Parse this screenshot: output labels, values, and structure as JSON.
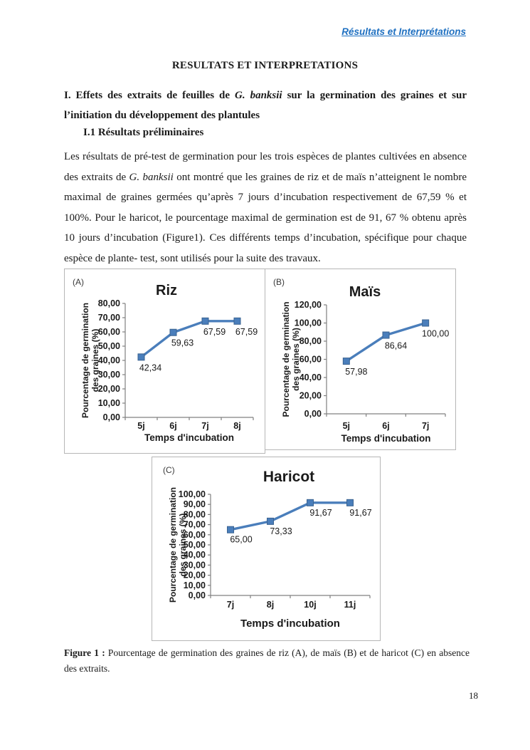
{
  "page": {
    "header": "Résultats et Interprétations",
    "title": "RESULTATS ET INTERPRETATIONS",
    "page_number": "18"
  },
  "section": {
    "heading_prefix": "I. Effets des extraits de feuilles de ",
    "heading_species": "G. banksii",
    "heading_suffix": " sur la germination des graines et sur l’initiation du développement des plantules",
    "subheading": "I.1 Résultats préliminaires"
  },
  "paragraph": {
    "part1": "Les résultats de pré-test de germination pour les trois espèces de plantes cultivées en absence des extraits de ",
    "species": "G. banksii",
    "part2": " ont montré que les graines de riz et de maïs n’atteignent le nombre maximal de graines germées qu’après 7 jours d’incubation respectivement de 67,59 % et 100%.  Pour le haricot, le pourcentage maximal de germination est de 91, 67 % obtenu après 10 jours d’incubation (Figure1). Ces différents temps d’incubation, spécifique pour chaque espèce de plante- test, sont utilisés pour la suite des travaux."
  },
  "caption": {
    "label": "Figure 1 :",
    "text": " Pourcentage de germination des graines de riz (A), de maïs (B) et de haricot (C) en absence des extraits."
  },
  "colors": {
    "header_blue": "#1f70c1",
    "line_blue": "#4a7ebb",
    "marker_edge": "#3a6391",
    "axis_gray": "#808080",
    "box_border": "#b6b6b6"
  },
  "chart_data": [
    {
      "type": "line",
      "panel": "(A)",
      "title": "Riz",
      "categories": [
        "5j",
        "6j",
        "7j",
        "8j"
      ],
      "values": [
        42.34,
        59.63,
        67.59,
        67.59
      ],
      "value_labels": [
        "42,34",
        "59,63",
        "67,59",
        "67,59"
      ],
      "ytick_labels": [
        "0,00",
        "10,00",
        "20,00",
        "30,00",
        "40,00",
        "50,00",
        "60,00",
        "70,00",
        "80,00"
      ],
      "ylim": [
        0,
        80
      ],
      "ystep": 10,
      "ylabel": "Pourcentage de germination des graines (%)",
      "ylabel_lines": [
        "Pourcentage de germination",
        "des graines (%)"
      ],
      "xlabel": "Temps d'incubation",
      "grid": false,
      "legend": "none",
      "line_color": "#4a7ebb"
    },
    {
      "type": "line",
      "panel": "(B)",
      "title": "Maïs",
      "categories": [
        "5j",
        "6j",
        "7j"
      ],
      "values": [
        57.98,
        86.64,
        100.0
      ],
      "value_labels": [
        "57,98",
        "86,64",
        "100,00"
      ],
      "ytick_labels": [
        "0,00",
        "20,00",
        "40,00",
        "60,00",
        "80,00",
        "100,00",
        "120,00"
      ],
      "ylim": [
        0,
        120
      ],
      "ystep": 20,
      "ylabel": "Pourcentage de germination des graines (%)",
      "ylabel_lines": [
        "Pourcentage de germination",
        "des graines (%)"
      ],
      "xlabel": "Temps d'incubation",
      "grid": false,
      "legend": "none",
      "line_color": "#4a7ebb"
    },
    {
      "type": "line",
      "panel": "(C)",
      "title": "Haricot",
      "categories": [
        "7j",
        "8j",
        "10j",
        "11j"
      ],
      "values": [
        65.0,
        73.33,
        91.67,
        91.67
      ],
      "value_labels": [
        "65,00",
        "73,33",
        "91,67",
        "91,67"
      ],
      "ytick_labels": [
        "0,00",
        "10,00",
        "20,00",
        "30,00",
        "40,00",
        "50,00",
        "60,00",
        "70,00",
        "80,00",
        "90,00",
        "100,00"
      ],
      "ylim": [
        0,
        100
      ],
      "ystep": 10,
      "ylabel": "Pourcentage de germination des graines (%)",
      "ylabel_lines": [
        "Pourcentage de germination",
        "des graines (%)"
      ],
      "xlabel": "Temps d'incubation",
      "grid": false,
      "legend": "none",
      "line_color": "#4a7ebb"
    }
  ]
}
